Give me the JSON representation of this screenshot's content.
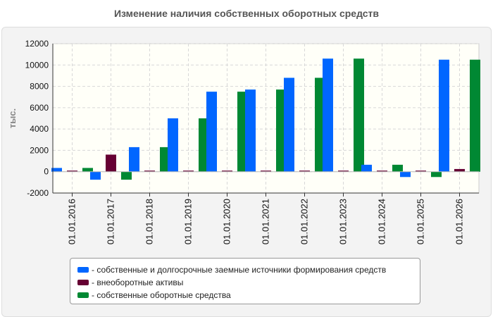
{
  "title": "Изменение наличия собственных оборотных средств",
  "colors": {
    "series": [
      "#0066ff",
      "#660033",
      "#008833"
    ],
    "grid": "#d8d8d8",
    "axis": "#333333"
  },
  "chart_data": {
    "type": "bar",
    "title": "Изменение наличия собственных оборотных средств",
    "ylabel": "тыс.",
    "xlabel": "",
    "ylim": [
      -2000,
      12000
    ],
    "yticks": [
      -2000,
      0,
      2000,
      4000,
      6000,
      8000,
      10000,
      12000
    ],
    "grid": true,
    "legend_position": "bottom",
    "categories": [
      "01.01.2016",
      "01.01.2017",
      "01.01.2018",
      "01.01.2019",
      "01.01.2020",
      "01.01.2021",
      "01.01.2022",
      "01.01.2023",
      "01.01.2024",
      "01.01.2025",
      "01.01.2026"
    ],
    "series": [
      {
        "name": "- собственные и долгосрочные заемные источники формирования средств",
        "values": [
          350,
          -750,
          2300,
          5000,
          7500,
          7700,
          8800,
          10600,
          650,
          -500,
          10500
        ]
      },
      {
        "name": "- внеоборотные активы",
        "values": [
          100,
          1600,
          100,
          100,
          100,
          100,
          100,
          100,
          100,
          100,
          250
        ]
      },
      {
        "name": "- собственные оборотные средства",
        "values": [
          350,
          -750,
          2300,
          5000,
          7500,
          7700,
          8800,
          10600,
          650,
          -500,
          10500
        ]
      }
    ]
  }
}
